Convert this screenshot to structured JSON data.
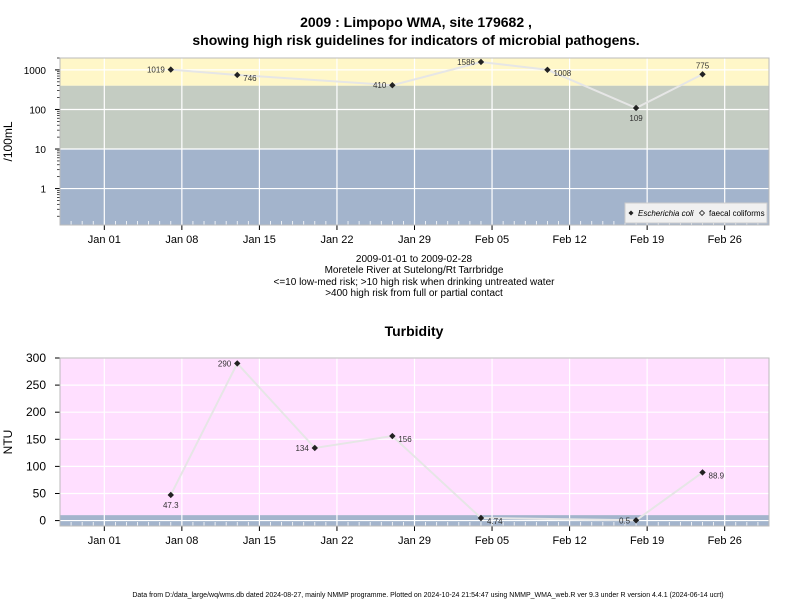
{
  "title_line1": "2009 : Limpopo WMA, site 179682 ,",
  "title_line2": "showing high risk guidelines for indicators of microbial pathogens.",
  "caption": [
    "2009-01-01 to 2009-02-28",
    "Moretele River at Sutelong/Rt Tarrbridge",
    "<=10 low-med risk; >10 high risk when drinking untreated water",
    ">400 high risk from full or partial contact"
  ],
  "footer": "Data from D:/data_large/wq/wms.db dated 2024-08-27, mainly NMMP programme. Plotted on 2024-10-24 21:54:47 using NMMP_WMA_web.R ver 9.3 under R version 4.4.1 (2024-06-14 ucrt)",
  "colors": {
    "band_high": "#FFF7C8",
    "band_mid": "#C4CCC2",
    "band_low": "#A3B4CC",
    "turb_bg": "#FFDFFF",
    "turb_band": "#A3B4CC",
    "line": "#E6E6E6",
    "marker": "#222222"
  },
  "chart_data": [
    {
      "type": "line",
      "title": "",
      "ylabel": "/100mL",
      "yscale": "log",
      "ylim": [
        0.12,
        2000
      ],
      "xlim": [
        "2008-12-28",
        "2009-03-02"
      ],
      "x_ticks": [
        "2009-01-01",
        "2009-01-08",
        "2009-01-15",
        "2009-01-22",
        "2009-01-29",
        "2009-02-05",
        "2009-02-12",
        "2009-02-19",
        "2009-02-26"
      ],
      "x_tick_labels": [
        "Jan 01",
        "Jan 08",
        "Jan 15",
        "Jan 22",
        "Jan 29",
        "Feb 05",
        "Feb 12",
        "Feb 19",
        "Feb 26"
      ],
      "y_ticks": [
        1,
        10,
        100,
        1000
      ],
      "y_tick_labels": [
        "1",
        "10",
        "100",
        "1000"
      ],
      "bands": [
        {
          "from": 0.12,
          "to": 10
        },
        {
          "from": 10,
          "to": 400
        },
        {
          "from": 400,
          "to": 2000
        }
      ],
      "legend_position": "bottom-right",
      "legend": [
        "Escherichia coli",
        "faecal coliforms"
      ],
      "series": [
        {
          "name": "Escherichia coli",
          "points": [
            {
              "x": "2009-01-07",
              "y": 1019,
              "label": "1019",
              "pos": "left"
            },
            {
              "x": "2009-01-13",
              "y": 746,
              "label": "746",
              "pos": "right"
            },
            {
              "x": "2009-01-27",
              "y": 410,
              "label": "410",
              "pos": "left"
            },
            {
              "x": "2009-02-04",
              "y": 1586,
              "label": "1586",
              "pos": "left"
            },
            {
              "x": "2009-02-10",
              "y": 1008,
              "label": "1008",
              "pos": "right"
            },
            {
              "x": "2009-02-18",
              "y": 109,
              "label": "109",
              "pos": "below"
            },
            {
              "x": "2009-02-24",
              "y": 775,
              "label": "775",
              "pos": "above"
            }
          ]
        }
      ]
    },
    {
      "type": "line",
      "title": "Turbidity",
      "ylabel": "NTU",
      "ylim": [
        -10,
        300
      ],
      "xlim": [
        "2008-12-28",
        "2009-03-02"
      ],
      "x_ticks": [
        "2009-01-01",
        "2009-01-08",
        "2009-01-15",
        "2009-01-22",
        "2009-01-29",
        "2009-02-05",
        "2009-02-12",
        "2009-02-19",
        "2009-02-26"
      ],
      "x_tick_labels": [
        "Jan 01",
        "Jan 08",
        "Jan 15",
        "Jan 22",
        "Jan 29",
        "Feb 05",
        "Feb 12",
        "Feb 19",
        "Feb 26"
      ],
      "y_ticks": [
        0,
        50,
        100,
        150,
        200,
        250,
        300
      ],
      "y_tick_labels": [
        "0",
        "50",
        "100",
        "150",
        "200",
        "250",
        "300"
      ],
      "bands": [
        {
          "from": -10,
          "to": 10
        }
      ],
      "series": [
        {
          "name": "",
          "points": [
            {
              "x": "2009-01-07",
              "y": 47.3,
              "label": "47.3",
              "pos": "below"
            },
            {
              "x": "2009-01-13",
              "y": 290,
              "label": "290",
              "pos": "left"
            },
            {
              "x": "2009-01-20",
              "y": 134,
              "label": "134",
              "pos": "left"
            },
            {
              "x": "2009-01-27",
              "y": 156,
              "label": "156",
              "pos": "right"
            },
            {
              "x": "2009-02-04",
              "y": 4.74,
              "label": "4.74",
              "pos": "right"
            },
            {
              "x": "2009-02-18",
              "y": 0.5,
              "label": "0.5",
              "pos": "left"
            },
            {
              "x": "2009-02-24",
              "y": 88.9,
              "label": "88.9",
              "pos": "right"
            }
          ]
        }
      ]
    }
  ]
}
